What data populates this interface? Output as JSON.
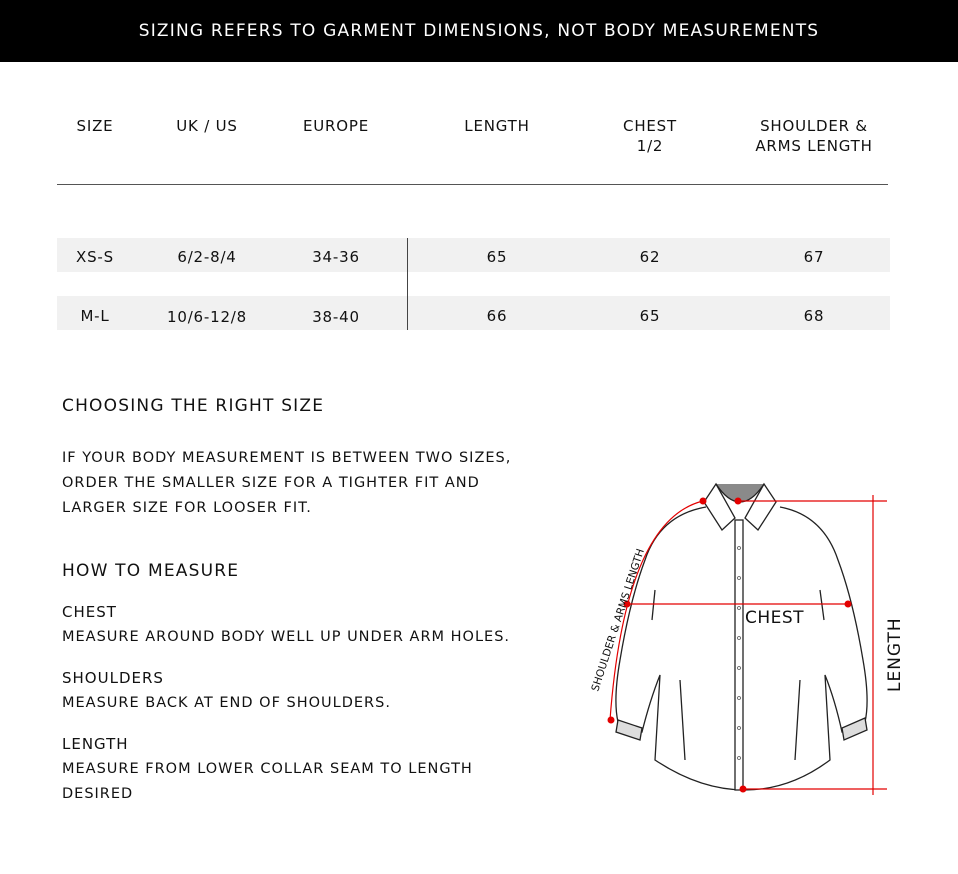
{
  "banner": "SIZING REFERS TO GARMENT DIMENSIONS, NOT BODY MEASUREMENTS",
  "table": {
    "headers": [
      [
        "SIZE"
      ],
      [
        "UK / US"
      ],
      [
        "EUROPE"
      ],
      [
        "LENGTH"
      ],
      [
        "CHEST",
        "1/2"
      ],
      [
        "SHOULDER &",
        "ARMS LENGTH"
      ]
    ],
    "rows": [
      [
        "XS-S",
        "6/2-8/4",
        "34-36",
        "65",
        "62",
        "67"
      ],
      [
        "M-L",
        "10/6-12/8",
        "38-40",
        "66",
        "65",
        "68"
      ]
    ]
  },
  "choosing": {
    "title": "CHOOSING THE RIGHT SIZE",
    "lines": [
      "IF YOUR BODY MEASUREMENT IS BETWEEN TWO SIZES,",
      "ORDER THE SMALLER SIZE FOR A TIGHTER FIT AND",
      "LARGER SIZE FOR LOOSER FIT."
    ]
  },
  "how": {
    "title": "HOW TO MEASURE",
    "items": [
      {
        "label": "CHEST",
        "lines": [
          "MEASURE AROUND BODY WELL UP UNDER ARM HOLES."
        ]
      },
      {
        "label": "SHOULDERS",
        "lines": [
          "MEASURE BACK AT END OF SHOULDERS."
        ]
      },
      {
        "label": "LENGTH",
        "lines": [
          "MEASURE FROM LOWER COLLAR SEAM TO LENGTH",
          "DESIRED"
        ]
      }
    ]
  },
  "diagram": {
    "shoulder_label": "SHOULDER & ARMS LENGTH",
    "chest_label": "CHEST",
    "length_label": "LENGTH",
    "accent": "#e30000"
  }
}
